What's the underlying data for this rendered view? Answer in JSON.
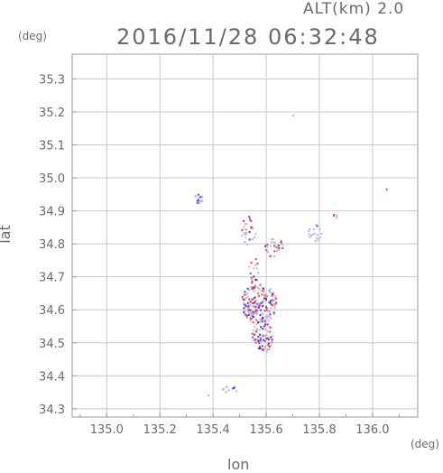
{
  "header": {
    "altitude_label": "ALT(km) 2.0",
    "timestamp": "2016/11/28 06:32:48",
    "y_unit": "(deg)",
    "x_unit": "(deg)"
  },
  "chart_data": {
    "type": "scatter",
    "title": "2016/11/28 06:32:48",
    "subtitle": "ALT(km) 2.0",
    "xlabel": "lon",
    "ylabel": "lat",
    "x_unit": "(deg)",
    "y_unit": "(deg)",
    "xlim": [
      134.87,
      136.17
    ],
    "ylim": [
      34.275,
      35.375
    ],
    "x_ticks": [
      135.0,
      135.2,
      135.4,
      135.6,
      135.8,
      136.0
    ],
    "x_tick_labels": [
      "135.0",
      "135.2",
      "135.4",
      "135.6",
      "135.8",
      "136.0"
    ],
    "y_ticks": [
      34.3,
      34.4,
      34.5,
      34.6,
      34.7,
      34.8,
      34.9,
      35.0,
      35.1,
      35.2,
      35.3
    ],
    "y_tick_labels": [
      "34.3",
      "34.4",
      "34.5",
      "34.6",
      "34.7",
      "34.8",
      "34.9",
      "35.0",
      "35.1",
      "35.2",
      "35.3"
    ],
    "grid": true,
    "colors": {
      "positive": "#e8413c",
      "negative": "#3a3ae6",
      "light_positive": "#f2b0ae",
      "light_negative": "#b4b4f2"
    },
    "clusters": [
      {
        "lon": 135.34,
        "lat": 34.94,
        "rx": 0.018,
        "ry": 0.015,
        "sign": -1,
        "density": 0.95
      },
      {
        "lon": 135.7,
        "lat": 35.19,
        "rx": 0.004,
        "ry": 0.006,
        "sign": -1,
        "density": 0.9
      },
      {
        "lon": 135.53,
        "lat": 34.84,
        "rx": 0.03,
        "ry": 0.045,
        "sign": 0,
        "density": 0.35
      },
      {
        "lon": 135.63,
        "lat": 34.79,
        "rx": 0.04,
        "ry": 0.03,
        "sign": 0,
        "density": 0.35
      },
      {
        "lon": 135.78,
        "lat": 34.84,
        "rx": 0.025,
        "ry": 0.035,
        "sign": -1,
        "density": 0.3
      },
      {
        "lon": 135.86,
        "lat": 34.89,
        "rx": 0.012,
        "ry": 0.012,
        "sign": 1,
        "density": 0.5
      },
      {
        "lon": 135.57,
        "lat": 34.62,
        "rx": 0.07,
        "ry": 0.06,
        "sign": 0,
        "density": 0.7
      },
      {
        "lon": 135.58,
        "lat": 34.52,
        "rx": 0.04,
        "ry": 0.05,
        "sign": 0,
        "density": 0.6
      },
      {
        "lon": 135.55,
        "lat": 34.72,
        "rx": 0.02,
        "ry": 0.04,
        "sign": 0,
        "density": 0.35
      },
      {
        "lon": 135.46,
        "lat": 34.36,
        "rx": 0.03,
        "ry": 0.01,
        "sign": -1,
        "density": 0.5
      },
      {
        "lon": 135.38,
        "lat": 34.34,
        "rx": 0.004,
        "ry": 0.004,
        "sign": -1,
        "density": 0.9
      },
      {
        "lon": 136.05,
        "lat": 34.97,
        "rx": 0.002,
        "ry": 0.002,
        "sign": 1,
        "density": 0.9
      }
    ]
  }
}
